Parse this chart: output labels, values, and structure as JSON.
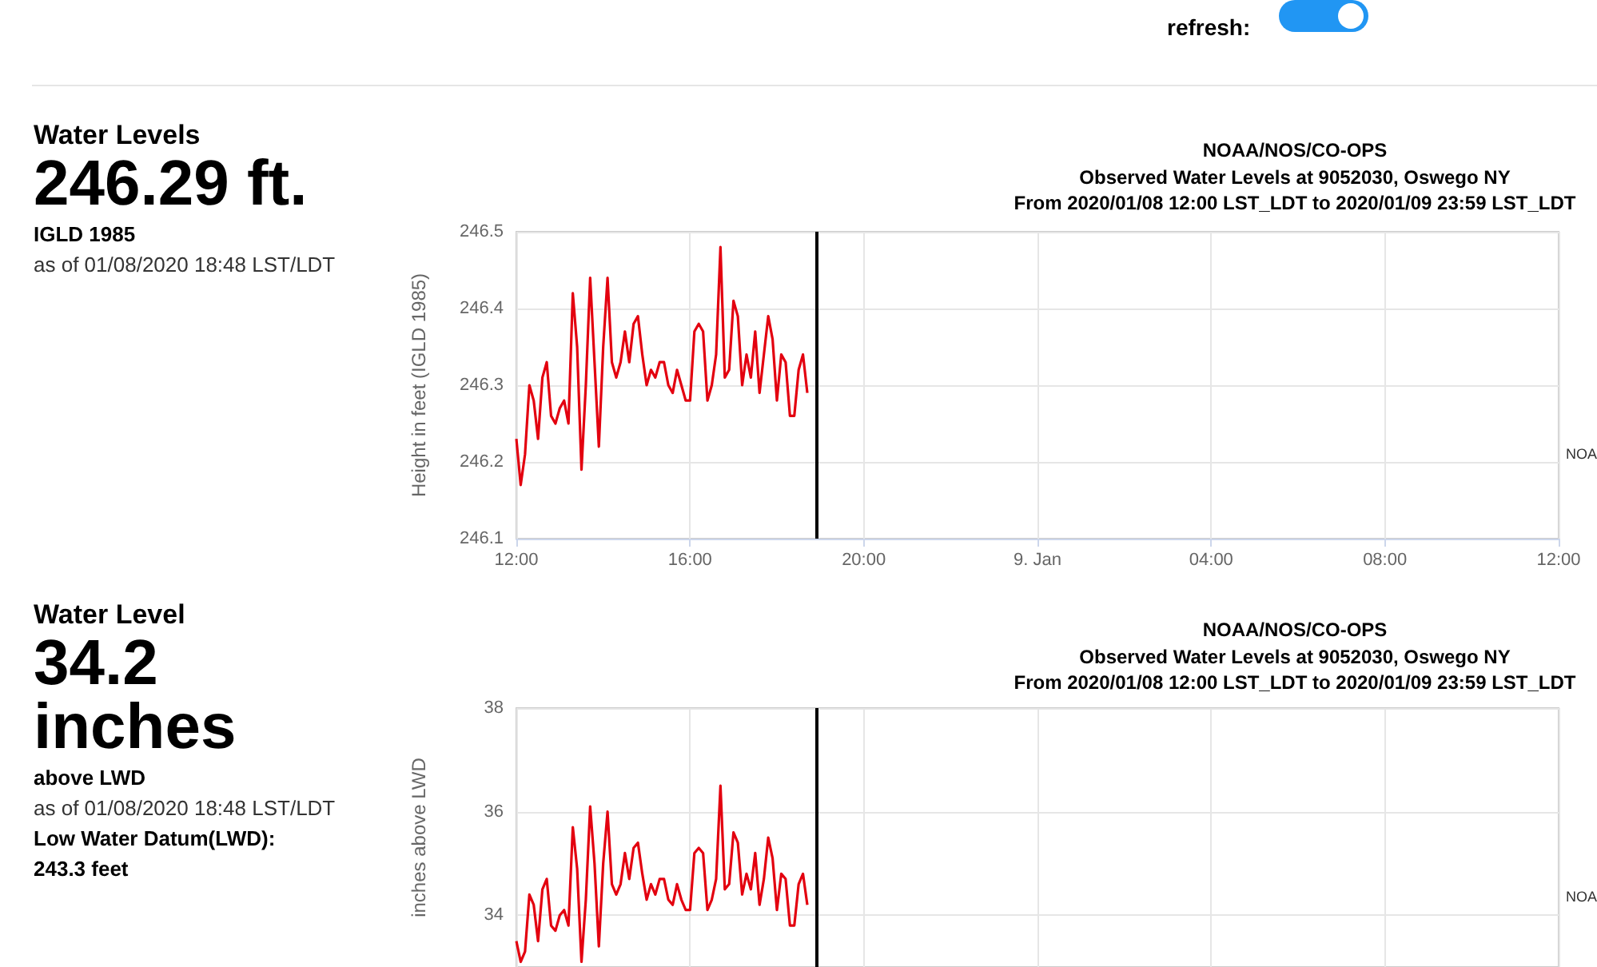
{
  "chart_data": [
    {
      "type": "other",
      "annotations": [
        "refresh:"
      ]
    },
    {
      "type": "other",
      "title": "Water Levels",
      "annotations": [
        "246.29 ft.",
        "IGLD 1985",
        "as of 01/08/2020 18:48 LST/LDT"
      ]
    },
    {
      "type": "line",
      "title": "NOAA/NOS/CO-OPS",
      "subtitle": "Observed Water Levels at 9052030, Oswego NY\nFrom 2020/01/08 12:00 LST_LDT to 2020/01/09 23:59 LST_LDT",
      "ylabel": "Height in feet (IGLD 1985)",
      "x": [
        "2020-01-08T12:00",
        "2020-01-08T12:06",
        "2020-01-08T12:12",
        "2020-01-08T12:18",
        "2020-01-08T12:24",
        "2020-01-08T12:30",
        "2020-01-08T12:36",
        "2020-01-08T12:42",
        "2020-01-08T12:48",
        "2020-01-08T12:54",
        "2020-01-08T13:00",
        "2020-01-08T13:06",
        "2020-01-08T13:12",
        "2020-01-08T13:18",
        "2020-01-08T13:24",
        "2020-01-08T13:30",
        "2020-01-08T13:36",
        "2020-01-08T13:42",
        "2020-01-08T13:48",
        "2020-01-08T13:54",
        "2020-01-08T14:00",
        "2020-01-08T14:06",
        "2020-01-08T14:12",
        "2020-01-08T14:18",
        "2020-01-08T14:24",
        "2020-01-08T14:30",
        "2020-01-08T14:36",
        "2020-01-08T14:42",
        "2020-01-08T14:48",
        "2020-01-08T14:54",
        "2020-01-08T15:00",
        "2020-01-08T15:06",
        "2020-01-08T15:12",
        "2020-01-08T15:18",
        "2020-01-08T15:24",
        "2020-01-08T15:30",
        "2020-01-08T15:36",
        "2020-01-08T15:42",
        "2020-01-08T15:48",
        "2020-01-08T15:54",
        "2020-01-08T16:00",
        "2020-01-08T16:06",
        "2020-01-08T16:12",
        "2020-01-08T16:18",
        "2020-01-08T16:24",
        "2020-01-08T16:30",
        "2020-01-08T16:36",
        "2020-01-08T16:42",
        "2020-01-08T16:48",
        "2020-01-08T16:54",
        "2020-01-08T17:00",
        "2020-01-08T17:06",
        "2020-01-08T17:12",
        "2020-01-08T17:18",
        "2020-01-08T17:24",
        "2020-01-08T17:30",
        "2020-01-08T17:36",
        "2020-01-08T17:42",
        "2020-01-08T17:48",
        "2020-01-08T17:54",
        "2020-01-08T18:00",
        "2020-01-08T18:06",
        "2020-01-08T18:12",
        "2020-01-08T18:18",
        "2020-01-08T18:24",
        "2020-01-08T18:30",
        "2020-01-08T18:36",
        "2020-01-08T18:42"
      ],
      "series": [
        {
          "color": "#e3000f",
          "values": [
            246.23,
            246.17,
            246.21,
            246.3,
            246.28,
            246.23,
            246.31,
            246.33,
            246.26,
            246.25,
            246.27,
            246.28,
            246.25,
            246.42,
            246.35,
            246.19,
            246.3,
            246.44,
            246.33,
            246.22,
            246.35,
            246.44,
            246.33,
            246.31,
            246.33,
            246.37,
            246.33,
            246.38,
            246.39,
            246.34,
            246.3,
            246.32,
            246.31,
            246.33,
            246.33,
            246.3,
            246.29,
            246.32,
            246.3,
            246.28,
            246.28,
            246.37,
            246.38,
            246.37,
            246.28,
            246.3,
            246.34,
            246.48,
            246.31,
            246.32,
            246.41,
            246.39,
            246.3,
            246.34,
            246.31,
            246.37,
            246.29,
            246.34,
            246.39,
            246.36,
            246.28,
            246.34,
            246.33,
            246.26,
            246.26,
            246.32,
            246.34,
            246.29
          ]
        }
      ],
      "xlim": [
        "2020-01-08T12:00",
        "2020-01-09T12:00"
      ],
      "xticks": [
        {
          "value": "2020-01-08T12:00",
          "label": "12:00"
        },
        {
          "value": "2020-01-08T16:00",
          "label": "16:00"
        },
        {
          "value": "2020-01-08T20:00",
          "label": "20:00"
        },
        {
          "value": "2020-01-09T00:00",
          "label": "9. Jan"
        },
        {
          "value": "2020-01-09T04:00",
          "label": "04:00"
        },
        {
          "value": "2020-01-09T08:00",
          "label": "08:00"
        },
        {
          "value": "2020-01-09T12:00",
          "label": "12:00"
        }
      ],
      "ylim": [
        246.1,
        246.5
      ],
      "yticks": [
        246.1,
        246.2,
        246.3,
        246.4,
        246.5
      ],
      "grid": true,
      "marker": "none",
      "line_style": "solid",
      "ref_lines": [
        {
          "axis": "x",
          "value": "2020-01-08T18:55",
          "color": "#000000"
        }
      ],
      "annotations": [
        "NOA"
      ]
    },
    {
      "type": "other",
      "title": "Water Level",
      "annotations": [
        "34.2 inches",
        "above LWD",
        "as of 01/08/2020 18:48 LST/LDT",
        "Low Water Datum(LWD):",
        "243.3 feet"
      ]
    },
    {
      "type": "line",
      "title": "NOAA/NOS/CO-OPS",
      "subtitle": "Observed Water Levels at 9052030, Oswego NY\nFrom 2020/01/08 12:00 LST_LDT to 2020/01/09 23:59 LST_LDT",
      "ylabel": "inches above LWD",
      "x": [
        "2020-01-08T12:00",
        "2020-01-08T12:06",
        "2020-01-08T12:12",
        "2020-01-08T12:18",
        "2020-01-08T12:24",
        "2020-01-08T12:30",
        "2020-01-08T12:36",
        "2020-01-08T12:42",
        "2020-01-08T12:48",
        "2020-01-08T12:54",
        "2020-01-08T13:00",
        "2020-01-08T13:06",
        "2020-01-08T13:12",
        "2020-01-08T13:18",
        "2020-01-08T13:24",
        "2020-01-08T13:30",
        "2020-01-08T13:36",
        "2020-01-08T13:42",
        "2020-01-08T13:48",
        "2020-01-08T13:54",
        "2020-01-08T14:00",
        "2020-01-08T14:06",
        "2020-01-08T14:12",
        "2020-01-08T14:18",
        "2020-01-08T14:24",
        "2020-01-08T14:30",
        "2020-01-08T14:36",
        "2020-01-08T14:42",
        "2020-01-08T14:48",
        "2020-01-08T14:54",
        "2020-01-08T15:00",
        "2020-01-08T15:06",
        "2020-01-08T15:12",
        "2020-01-08T15:18",
        "2020-01-08T15:24",
        "2020-01-08T15:30",
        "2020-01-08T15:36",
        "2020-01-08T15:42",
        "2020-01-08T15:48",
        "2020-01-08T15:54",
        "2020-01-08T16:00",
        "2020-01-08T16:06",
        "2020-01-08T16:12",
        "2020-01-08T16:18",
        "2020-01-08T16:24",
        "2020-01-08T16:30",
        "2020-01-08T16:36",
        "2020-01-08T16:42",
        "2020-01-08T16:48",
        "2020-01-08T16:54",
        "2020-01-08T17:00",
        "2020-01-08T17:06",
        "2020-01-08T17:12",
        "2020-01-08T17:18",
        "2020-01-08T17:24",
        "2020-01-08T17:30",
        "2020-01-08T17:36",
        "2020-01-08T17:42",
        "2020-01-08T17:48",
        "2020-01-08T17:54",
        "2020-01-08T18:00",
        "2020-01-08T18:06",
        "2020-01-08T18:12",
        "2020-01-08T18:18",
        "2020-01-08T18:24",
        "2020-01-08T18:30",
        "2020-01-08T18:36",
        "2020-01-08T18:42"
      ],
      "series": [
        {
          "color": "#e3000f",
          "values": [
            33.5,
            33.1,
            33.3,
            34.4,
            34.2,
            33.5,
            34.5,
            34.7,
            33.8,
            33.7,
            34.0,
            34.1,
            33.8,
            35.7,
            34.9,
            33.1,
            34.3,
            36.1,
            35.0,
            33.4,
            35.0,
            36.0,
            34.6,
            34.4,
            34.6,
            35.2,
            34.7,
            35.3,
            35.4,
            34.8,
            34.3,
            34.6,
            34.4,
            34.7,
            34.7,
            34.3,
            34.2,
            34.6,
            34.3,
            34.1,
            34.1,
            35.2,
            35.3,
            35.2,
            34.1,
            34.3,
            34.7,
            36.5,
            34.5,
            34.6,
            35.6,
            35.4,
            34.4,
            34.8,
            34.5,
            35.2,
            34.2,
            34.7,
            35.5,
            35.1,
            34.1,
            34.8,
            34.7,
            33.8,
            33.8,
            34.6,
            34.8,
            34.2
          ]
        }
      ],
      "xlim": [
        "2020-01-08T12:00",
        "2020-01-09T12:00"
      ],
      "xticks": [
        {
          "value": "2020-01-08T12:00",
          "label": null
        },
        {
          "value": "2020-01-08T16:00",
          "label": null
        },
        {
          "value": "2020-01-08T20:00",
          "label": null
        },
        {
          "value": "2020-01-09T00:00",
          "label": null
        },
        {
          "value": "2020-01-09T04:00",
          "label": null
        },
        {
          "value": "2020-01-09T08:00",
          "label": null
        },
        {
          "value": "2020-01-09T12:00",
          "label": null
        }
      ],
      "ylim": [
        33,
        38
      ],
      "yticks": [
        34,
        36,
        38
      ],
      "grid": true,
      "marker": "none",
      "line_style": "solid",
      "tick_labels": "y",
      "ref_lines": [
        {
          "axis": "x",
          "value": "2020-01-08T18:55",
          "color": "#000000"
        }
      ],
      "annotations": [
        "NOA"
      ]
    }
  ]
}
